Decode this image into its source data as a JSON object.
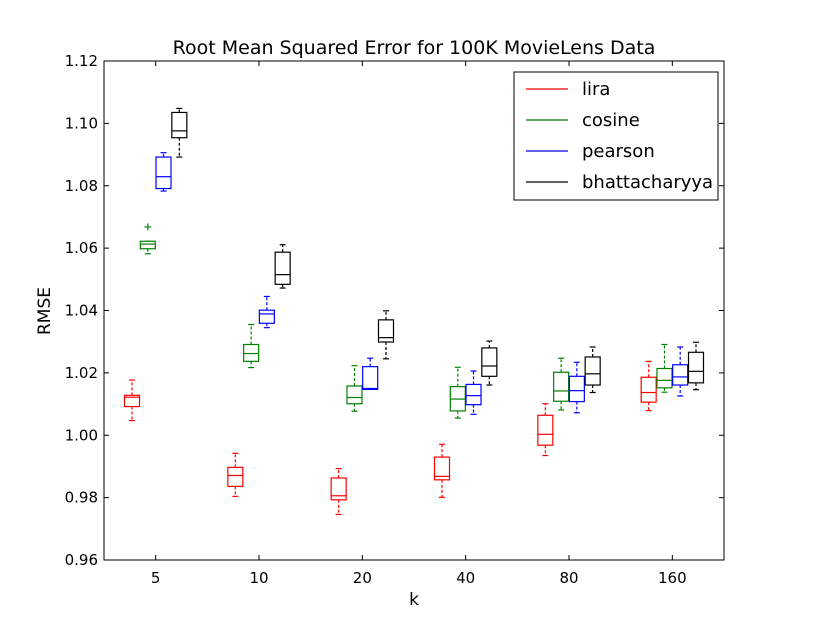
{
  "chart_data": {
    "type": "box",
    "title": "Root Mean Squared Error for 100K MovieLens Data",
    "xlabel": "k",
    "ylabel": "RMSE",
    "categories": [
      "5",
      "10",
      "20",
      "40",
      "80",
      "160"
    ],
    "ylim": [
      0.96,
      1.12
    ],
    "yticks": [
      "0.96",
      "0.98",
      "1.00",
      "1.02",
      "1.04",
      "1.06",
      "1.08",
      "1.10",
      "1.12"
    ],
    "legend_position": "top-right",
    "grid": false,
    "series": [
      {
        "name": "lira",
        "color": "#ff0000",
        "boxes": [
          {
            "whislo": 1.0047,
            "q1": 1.0092,
            "med": 1.0122,
            "q3": 1.0128,
            "whishi": 1.0177,
            "fliers": []
          },
          {
            "whislo": 0.9804,
            "q1": 0.9836,
            "med": 0.9871,
            "q3": 0.9897,
            "whishi": 0.9942,
            "fliers": []
          },
          {
            "whislo": 0.9746,
            "q1": 0.9793,
            "med": 0.9806,
            "q3": 0.9863,
            "whishi": 0.9893,
            "fliers": []
          },
          {
            "whislo": 0.9801,
            "q1": 0.9857,
            "med": 0.9868,
            "q3": 0.993,
            "whishi": 0.9971,
            "fliers": []
          },
          {
            "whislo": 0.9935,
            "q1": 0.9968,
            "med": 1.0003,
            "q3": 1.0064,
            "whishi": 1.0101,
            "fliers": []
          },
          {
            "whislo": 1.0079,
            "q1": 1.0106,
            "med": 1.0137,
            "q3": 1.0186,
            "whishi": 1.0237,
            "fliers": []
          }
        ]
      },
      {
        "name": "cosine",
        "color": "#008000",
        "boxes": [
          {
            "whislo": 1.0582,
            "q1": 1.0598,
            "med": 1.0613,
            "q3": 1.0622,
            "whishi": 1.0622,
            "fliers": [
              1.0668
            ]
          },
          {
            "whislo": 1.0217,
            "q1": 1.0237,
            "med": 1.0262,
            "q3": 1.0291,
            "whishi": 1.0355,
            "fliers": []
          },
          {
            "whislo": 1.0077,
            "q1": 1.0101,
            "med": 1.0121,
            "q3": 1.0158,
            "whishi": 1.0223,
            "fliers": []
          },
          {
            "whislo": 1.0055,
            "q1": 1.0078,
            "med": 1.0116,
            "q3": 1.0156,
            "whishi": 1.0218,
            "fliers": []
          },
          {
            "whislo": 1.0081,
            "q1": 1.0109,
            "med": 1.0142,
            "q3": 1.0202,
            "whishi": 1.0247,
            "fliers": []
          },
          {
            "whislo": 1.0138,
            "q1": 1.0152,
            "med": 1.0176,
            "q3": 1.0214,
            "whishi": 1.0291,
            "fliers": []
          }
        ]
      },
      {
        "name": "pearson",
        "color": "#0000ff",
        "boxes": [
          {
            "whislo": 1.0783,
            "q1": 1.0791,
            "med": 1.0829,
            "q3": 1.0892,
            "whishi": 1.0906,
            "fliers": []
          },
          {
            "whislo": 1.0345,
            "q1": 1.0359,
            "med": 1.0389,
            "q3": 1.0401,
            "whishi": 1.0445,
            "fliers": []
          },
          {
            "whislo": 1.0147,
            "q1": 1.0147,
            "med": 1.015,
            "q3": 1.022,
            "whishi": 1.0247,
            "fliers": []
          },
          {
            "whislo": 1.0067,
            "q1": 1.0098,
            "med": 1.0127,
            "q3": 1.0163,
            "whishi": 1.0206,
            "fliers": []
          },
          {
            "whislo": 1.0072,
            "q1": 1.0108,
            "med": 1.0143,
            "q3": 1.0189,
            "whishi": 1.0234,
            "fliers": []
          },
          {
            "whislo": 1.0126,
            "q1": 1.0161,
            "med": 1.0187,
            "q3": 1.0226,
            "whishi": 1.0283,
            "fliers": []
          }
        ]
      },
      {
        "name": "bhattacharyya",
        "color": "#000000",
        "boxes": [
          {
            "whislo": 1.0892,
            "q1": 1.0954,
            "med": 1.0976,
            "q3": 1.1035,
            "whishi": 1.1048,
            "fliers": []
          },
          {
            "whislo": 1.0472,
            "q1": 1.0484,
            "med": 1.0515,
            "q3": 1.0587,
            "whishi": 1.0611,
            "fliers": []
          },
          {
            "whislo": 1.0245,
            "q1": 1.0299,
            "med": 1.0313,
            "q3": 1.037,
            "whishi": 1.0399,
            "fliers": []
          },
          {
            "whislo": 1.0161,
            "q1": 1.0189,
            "med": 1.0222,
            "q3": 1.028,
            "whishi": 1.0302,
            "fliers": []
          },
          {
            "whislo": 1.0137,
            "q1": 1.0161,
            "med": 1.0197,
            "q3": 1.0251,
            "whishi": 1.0283,
            "fliers": []
          },
          {
            "whislo": 1.0146,
            "q1": 1.0168,
            "med": 1.0205,
            "q3": 1.0266,
            "whishi": 1.0298,
            "fliers": []
          }
        ]
      }
    ]
  }
}
